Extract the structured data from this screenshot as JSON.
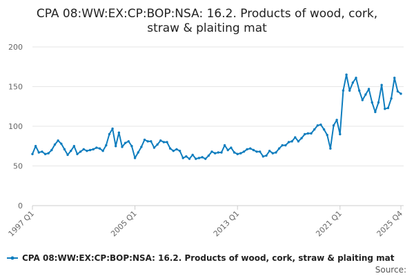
{
  "chart_data": {
    "type": "line",
    "title_line1": "CPA 08:WW:EX:CP:BOP:NSA: 16.2. Products of wood, cork,",
    "title_line2": "straw & plaiting mat",
    "xlabel": "",
    "ylabel": "",
    "ylim": [
      0,
      200
    ],
    "yticks": [
      "0",
      "50",
      "100",
      "150",
      "200"
    ],
    "xtick_labels": [
      "1997 Q1",
      "2005 Q1",
      "2013 Q1",
      "2021 Q1",
      "2025 Q4"
    ],
    "grid": true,
    "legend_position": "bottom",
    "series": [
      {
        "name": "CPA 08:WW:EX:CP:BOP:NSA: 16.2. Products of wood, cork, straw & plaiting mat",
        "color": "#0e7dbe",
        "x": [
          "1997 Q1",
          "1997 Q2",
          "1997 Q3",
          "1997 Q4",
          "1998 Q1",
          "1998 Q2",
          "1998 Q3",
          "1998 Q4",
          "1999 Q1",
          "1999 Q2",
          "1999 Q3",
          "1999 Q4",
          "2000 Q1",
          "2000 Q2",
          "2000 Q3",
          "2000 Q4",
          "2001 Q1",
          "2001 Q2",
          "2001 Q3",
          "2001 Q4",
          "2002 Q1",
          "2002 Q2",
          "2002 Q3",
          "2002 Q4",
          "2003 Q1",
          "2003 Q2",
          "2003 Q3",
          "2003 Q4",
          "2004 Q1",
          "2004 Q2",
          "2004 Q3",
          "2004 Q4",
          "2005 Q1",
          "2005 Q2",
          "2005 Q3",
          "2005 Q4",
          "2006 Q1",
          "2006 Q2",
          "2006 Q3",
          "2006 Q4",
          "2007 Q1",
          "2007 Q2",
          "2007 Q3",
          "2007 Q4",
          "2008 Q1",
          "2008 Q2",
          "2008 Q3",
          "2008 Q4",
          "2009 Q1",
          "2009 Q2",
          "2009 Q3",
          "2009 Q4",
          "2010 Q1",
          "2010 Q2",
          "2010 Q3",
          "2010 Q4",
          "2011 Q1",
          "2011 Q2",
          "2011 Q3",
          "2011 Q4",
          "2012 Q1",
          "2012 Q2",
          "2012 Q3",
          "2012 Q4",
          "2013 Q1",
          "2013 Q2",
          "2013 Q3",
          "2013 Q4",
          "2014 Q1",
          "2014 Q2",
          "2014 Q3",
          "2014 Q4",
          "2015 Q1",
          "2015 Q2",
          "2015 Q3",
          "2015 Q4",
          "2016 Q1",
          "2016 Q2",
          "2016 Q3",
          "2016 Q4",
          "2017 Q1",
          "2017 Q2",
          "2017 Q3",
          "2017 Q4",
          "2018 Q1",
          "2018 Q2",
          "2018 Q3",
          "2018 Q4",
          "2019 Q1",
          "2019 Q2",
          "2019 Q3",
          "2019 Q4",
          "2020 Q1",
          "2020 Q2",
          "2020 Q3",
          "2020 Q4",
          "2021 Q1",
          "2021 Q2",
          "2021 Q3",
          "2021 Q4",
          "2022 Q1",
          "2022 Q2",
          "2022 Q3",
          "2022 Q4",
          "2023 Q1",
          "2023 Q2",
          "2023 Q3",
          "2023 Q4",
          "2024 Q1",
          "2024 Q2",
          "2024 Q3",
          "2024 Q4",
          "2025 Q1",
          "2025 Q2",
          "2025 Q3",
          "2025 Q4"
        ],
        "values": [
          65,
          75,
          67,
          68,
          65,
          66,
          70,
          77,
          82,
          78,
          71,
          64,
          69,
          75,
          65,
          68,
          71,
          69,
          70,
          71,
          73,
          72,
          69,
          76,
          90,
          97,
          75,
          92,
          74,
          79,
          81,
          75,
          60,
          67,
          74,
          83,
          81,
          81,
          73,
          77,
          82,
          80,
          80,
          72,
          69,
          71,
          69,
          60,
          62,
          59,
          64,
          59,
          60,
          61,
          59,
          63,
          68,
          66,
          67,
          67,
          76,
          70,
          73,
          67,
          65,
          66,
          68,
          71,
          72,
          70,
          68,
          68,
          62,
          63,
          69,
          66,
          67,
          72,
          76,
          76,
          80,
          81,
          86,
          81,
          85,
          90,
          91,
          91,
          96,
          101,
          102,
          96,
          89,
          72,
          101,
          108,
          90,
          145,
          165,
          145,
          155,
          161,
          145,
          133,
          140,
          147,
          130,
          118,
          130,
          152,
          122,
          123,
          135,
          161,
          144,
          141
        ]
      }
    ],
    "source_label": "Source:"
  }
}
